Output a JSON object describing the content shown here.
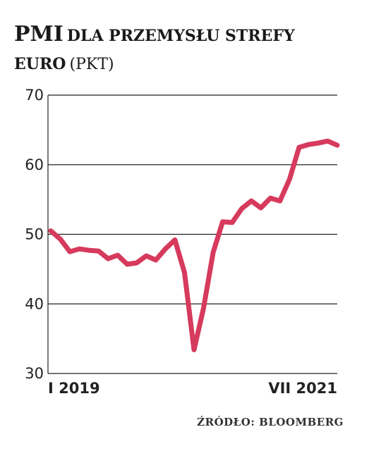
{
  "title": {
    "main": "PMI",
    "rest_line1": "DLA PRZEMYSŁU STREFY",
    "rest_line2": "EURO",
    "unit": "(PKT)"
  },
  "source": "ŹRÓDŁO: BLOOMBERG",
  "colors": {
    "line": "#d63a5c",
    "grid": "#222222",
    "text": "#1a1a1a"
  },
  "chart_data": {
    "type": "line",
    "title": "PMI DLA PRZEMYSŁU STREFY EURO (PKT)",
    "xlabel": "",
    "ylabel": "",
    "ylim": [
      30,
      70
    ],
    "yticks": [
      30,
      40,
      50,
      60,
      70
    ],
    "x_tick_labels": [
      "I 2019",
      "VII 2021"
    ],
    "x_tick_indices": [
      0,
      30
    ],
    "grid": "horizontal",
    "series": [
      {
        "values": [
          50.5,
          49.3,
          47.5,
          47.9,
          47.7,
          47.6,
          46.5,
          47.0,
          45.7,
          45.9,
          46.9,
          46.3,
          47.9,
          49.2,
          44.5,
          33.4,
          39.4,
          47.4,
          51.8,
          51.7,
          53.7,
          54.8,
          53.8,
          55.2,
          54.8,
          57.9,
          62.5,
          62.9,
          63.1,
          63.4,
          62.8
        ]
      }
    ]
  }
}
